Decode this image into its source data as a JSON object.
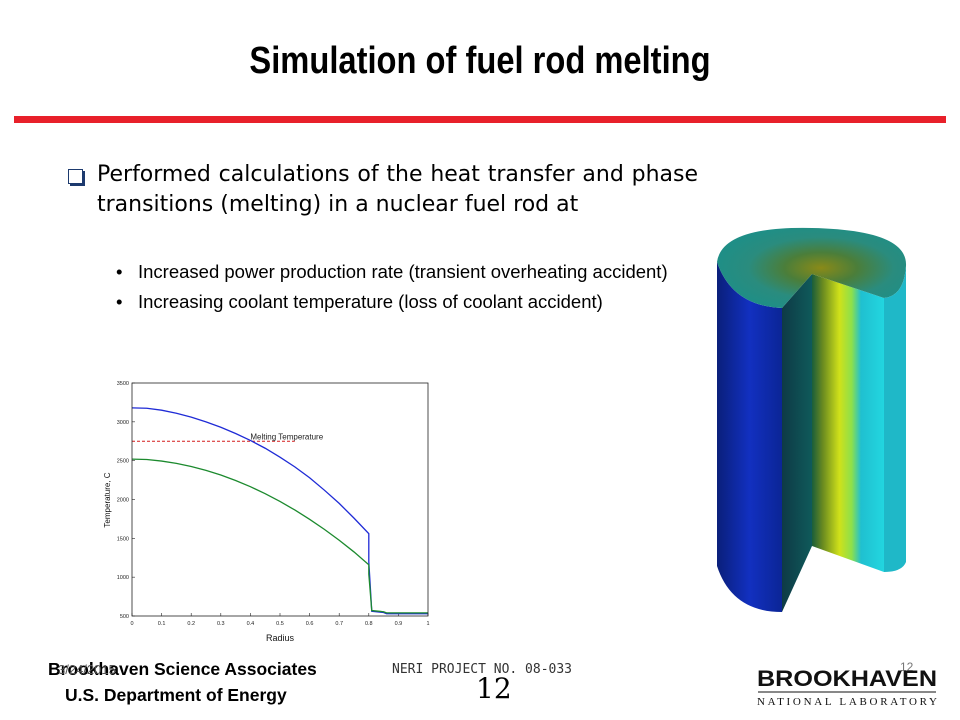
{
  "slide": {
    "title": "Simulation of fuel rod melting",
    "main_bullet": "Performed calculations of the heat transfer and phase transitions (melting) in a nuclear fuel rod at",
    "sub_bullets": [
      "Increased power production rate (transient overheating accident)",
      "Increasing coolant temperature (loss of coolant accident)"
    ],
    "bullet_glyph": "•"
  },
  "chart_data": {
    "type": "line",
    "xlabel": "Radius",
    "ylabel": "Temperature, C",
    "xlim": [
      0,
      1
    ],
    "ylim": [
      500,
      3500
    ],
    "xticks": [
      "0",
      "0.1",
      "0.2",
      "0.3",
      "0.4",
      "0.5",
      "0.6",
      "0.7",
      "0.8",
      "0.9",
      "1"
    ],
    "yticks": [
      "500",
      "1000",
      "1500",
      "2000",
      "2500",
      "3000",
      "3500"
    ],
    "annotation": "Melting Temperature",
    "melting_temperature": 2750,
    "melting_line_x": [
      0,
      0.55
    ],
    "series": [
      {
        "color": "#1f2bd6",
        "x": [
          0,
          0.05,
          0.1,
          0.15,
          0.2,
          0.25,
          0.3,
          0.35,
          0.4,
          0.45,
          0.5,
          0.55,
          0.6,
          0.65,
          0.7,
          0.75,
          0.8,
          0.8,
          0.81,
          0.85,
          0.86,
          0.9,
          1.0
        ],
        "y": [
          3180,
          3175,
          3150,
          3110,
          3060,
          3000,
          2930,
          2850,
          2760,
          2660,
          2545,
          2420,
          2280,
          2120,
          1950,
          1760,
          1560,
          1200,
          560,
          545,
          530,
          530,
          530
        ]
      },
      {
        "color": "#1c8a2e",
        "x": [
          0,
          0.05,
          0.1,
          0.15,
          0.2,
          0.25,
          0.3,
          0.35,
          0.4,
          0.45,
          0.5,
          0.55,
          0.6,
          0.65,
          0.7,
          0.75,
          0.8,
          0.8,
          0.81,
          0.85,
          0.86,
          0.9,
          1.0
        ],
        "y": [
          2520,
          2515,
          2495,
          2465,
          2425,
          2375,
          2315,
          2245,
          2165,
          2075,
          1975,
          1865,
          1745,
          1615,
          1475,
          1325,
          1160,
          1040,
          570,
          555,
          540,
          540,
          540
        ]
      }
    ]
  },
  "footer": {
    "org_line1": "Brookhaven Science Associates",
    "org_line2": "U.S. Department of Energy",
    "date": "3/24/2015",
    "project": "NERI PROJECT NO. 08-033",
    "page": "12",
    "page_small": "12"
  },
  "logo": {
    "wordmark": "BROOKHAVEN",
    "subtitle": "NATIONAL LABORATORY"
  },
  "colors": {
    "accent_red": "#e8202a",
    "bullet_box": "#1d3a6e"
  }
}
